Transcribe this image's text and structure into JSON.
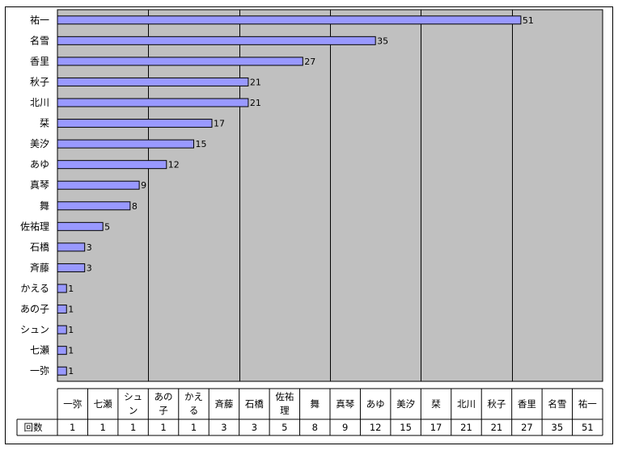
{
  "chart_data": {
    "type": "bar",
    "orientation": "horizontal",
    "categories": [
      "一弥",
      "七瀬",
      "シュン",
      "あの子",
      "かえる",
      "斉藤",
      "石橋",
      "佐祐理",
      "舞",
      "真琴",
      "あゆ",
      "美汐",
      "栞",
      "北川",
      "秋子",
      "香里",
      "名雪",
      "祐一"
    ],
    "table_headers": [
      [
        "一弥"
      ],
      [
        "七瀬"
      ],
      [
        "シュ",
        "ン"
      ],
      [
        "あの",
        "子"
      ],
      [
        "かえ",
        "る"
      ],
      [
        "斉藤"
      ],
      [
        "石橋"
      ],
      [
        "佐祐",
        "理"
      ],
      [
        "舞"
      ],
      [
        "真琴"
      ],
      [
        "あゆ"
      ],
      [
        "美汐"
      ],
      [
        "栞"
      ],
      [
        "北川"
      ],
      [
        "秋子"
      ],
      [
        "香里"
      ],
      [
        "名雪"
      ],
      [
        "祐一"
      ]
    ],
    "series": [
      {
        "name": "回数",
        "values": [
          1,
          1,
          1,
          1,
          1,
          3,
          3,
          5,
          8,
          9,
          12,
          15,
          17,
          21,
          21,
          27,
          35,
          51
        ]
      }
    ],
    "xlim": [
      0,
      60
    ],
    "major_tick_step": 10,
    "grid": true,
    "legend": "none",
    "data_table": true,
    "colors": {
      "plot_background": "#c0c0c0",
      "bar_fill": "#9999ff",
      "bar_stroke": "#000000",
      "gridline": "#000000"
    }
  }
}
